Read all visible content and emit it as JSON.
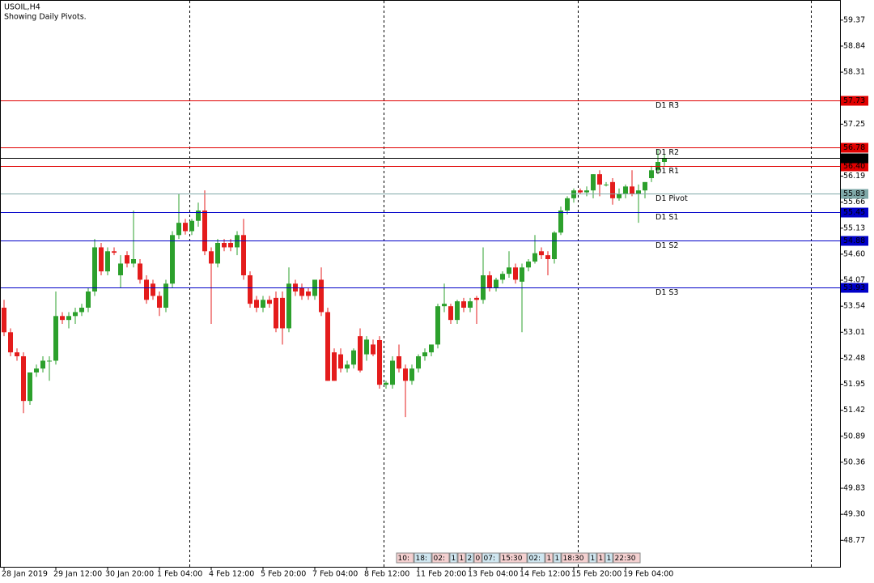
{
  "chart_data": {
    "type": "candlestick",
    "title": "USOIL,H4",
    "subtitle": "Showing Daily Pivots.",
    "categories": [
      "28 Jan 2019",
      null,
      null,
      null,
      null,
      null,
      null,
      null,
      "29 Jan 12:00",
      null,
      null,
      null,
      null,
      null,
      null,
      null,
      "30 Jan 20:00",
      null,
      null,
      null,
      null,
      null,
      null,
      null,
      "1 Feb 04:00",
      null,
      null,
      null,
      null,
      null,
      null,
      null,
      "4 Feb 12:00",
      null,
      null,
      null,
      null,
      null,
      null,
      null,
      "5 Feb 20:00",
      null,
      null,
      null,
      null,
      null,
      null,
      null,
      "7 Feb 04:00",
      null,
      null,
      null,
      null,
      null,
      null,
      null,
      "8 Feb 12:00",
      null,
      null,
      null,
      null,
      null,
      null,
      null,
      "11 Feb 20:00",
      null,
      null,
      null,
      null,
      null,
      null,
      null,
      "13 Feb 04:00",
      null,
      null,
      null,
      null,
      null,
      null,
      null,
      "14 Feb 12:00",
      null,
      null,
      null,
      null,
      null,
      null,
      null,
      "15 Feb 20:00",
      null,
      null,
      null,
      null,
      null,
      null,
      null,
      "19 Feb 04:00",
      null,
      null,
      null,
      null,
      null,
      null
    ],
    "open": [
      53.51,
      53.01,
      52.6,
      52.52,
      51.61,
      52.19,
      52.27,
      52.43,
      52.43,
      53.34,
      53.26,
      53.34,
      53.42,
      53.51,
      53.84,
      54.74,
      54.25,
      54.66,
      54.17,
      54.58,
      54.41,
      54.41,
      54.08,
      54.0,
      53.75,
      53.51,
      54.0,
      54.99,
      55.24,
      55.07,
      55.28,
      55.49,
      54.66,
      54.41,
      54.83,
      54.83,
      54.74,
      54.99,
      54.17,
      53.67,
      53.51,
      53.67,
      53.71,
      53.71,
      53.09,
      54.0,
      53.92,
      53.84,
      53.75,
      54.08,
      53.42,
      52.6,
      52.56,
      52.27,
      52.35,
      52.93,
      52.56,
      52.76,
      52.85,
      51.94,
      51.94,
      52.52,
      52.27,
      52.02,
      52.27,
      52.52,
      52.6,
      52.76,
      53.54,
      53.54,
      53.26,
      53.64,
      53.51,
      53.71,
      53.67,
      54.17,
      53.92,
      54.08,
      54.2,
      54.33,
      54.04,
      54.33,
      54.45,
      54.66,
      54.58,
      54.5,
      55.04,
      55.49,
      55.74,
      55.9,
      55.86,
      55.9,
      56.23,
      56.02,
      56.07,
      55.74,
      55.82,
      55.98,
      55.82,
      55.9,
      56.15,
      56.31,
      56.48
    ],
    "high": [
      53.67,
      53.09,
      52.68,
      52.6,
      52.19,
      52.35,
      52.52,
      52.52,
      53.84,
      53.42,
      53.42,
      53.51,
      53.59,
      53.92,
      54.91,
      54.83,
      54.74,
      54.74,
      54.58,
      54.66,
      55.49,
      54.5,
      54.17,
      54.08,
      53.84,
      54.08,
      55.07,
      55.82,
      55.32,
      55.32,
      55.65,
      55.9,
      54.74,
      54.91,
      54.91,
      54.91,
      55.07,
      55.32,
      54.25,
      53.75,
      53.75,
      53.75,
      53.84,
      53.84,
      54.33,
      54.08,
      54.0,
      53.92,
      54.08,
      54.33,
      53.51,
      52.68,
      52.68,
      52.43,
      52.68,
      53.09,
      52.93,
      52.86,
      52.93,
      52.02,
      52.52,
      52.76,
      52.35,
      52.35,
      52.56,
      52.68,
      52.76,
      53.59,
      54.0,
      53.59,
      53.67,
      53.71,
      53.71,
      53.75,
      54.74,
      54.25,
      54.12,
      54.25,
      54.66,
      54.41,
      54.41,
      54.5,
      54.99,
      54.74,
      54.66,
      55.07,
      55.57,
      55.78,
      55.94,
      55.94,
      55.98,
      56.23,
      56.31,
      56.07,
      56.15,
      55.94,
      56.02,
      56.31,
      56.02,
      56.07,
      56.4,
      56.73,
      56.64
    ],
    "low": [
      52.93,
      52.52,
      52.43,
      51.36,
      51.53,
      52.1,
      52.19,
      52.02,
      52.35,
      53.18,
      53.09,
      53.18,
      53.34,
      53.42,
      53.75,
      54.17,
      54.17,
      54.58,
      53.92,
      54.33,
      54.33,
      54.0,
      53.59,
      53.67,
      53.34,
      53.42,
      53.92,
      54.91,
      55.0,
      54.99,
      55.16,
      54.58,
      53.18,
      54.33,
      54.66,
      54.66,
      54.58,
      54.08,
      53.51,
      53.42,
      53.42,
      53.51,
      53.01,
      52.76,
      53.01,
      53.75,
      53.67,
      53.67,
      53.67,
      53.34,
      52.02,
      52.02,
      52.19,
      52.19,
      52.27,
      52.19,
      52.43,
      52.52,
      51.86,
      51.86,
      51.86,
      52.19,
      51.28,
      51.94,
      52.19,
      52.43,
      52.52,
      52.68,
      53.42,
      53.18,
      53.18,
      53.42,
      53.42,
      53.18,
      53.59,
      53.84,
      53.84,
      54.0,
      54.12,
      54.0,
      53.01,
      54.25,
      54.41,
      54.5,
      54.17,
      54.41,
      54.99,
      55.41,
      55.65,
      55.82,
      55.78,
      55.74,
      55.78,
      55.98,
      55.61,
      55.69,
      55.74,
      55.78,
      55.24,
      55.74,
      56.07,
      56.23,
      56.4
    ],
    "close": [
      53.01,
      52.6,
      52.52,
      51.61,
      52.19,
      52.27,
      52.43,
      52.43,
      53.34,
      53.26,
      53.34,
      53.42,
      53.51,
      53.84,
      54.74,
      54.25,
      54.66,
      54.63,
      54.41,
      54.41,
      54.5,
      54.08,
      53.67,
      53.75,
      53.51,
      54.0,
      54.99,
      55.24,
      55.07,
      55.28,
      55.49,
      54.66,
      54.41,
      54.83,
      54.74,
      54.74,
      54.99,
      54.17,
      53.59,
      53.51,
      53.67,
      53.59,
      53.09,
      53.09,
      54.0,
      53.84,
      53.75,
      53.75,
      54.08,
      53.42,
      52.02,
      52.02,
      52.27,
      52.35,
      52.64,
      52.23,
      52.86,
      52.56,
      51.94,
      51.98,
      52.43,
      52.27,
      52.02,
      52.27,
      52.52,
      52.6,
      52.76,
      53.54,
      53.59,
      53.26,
      53.64,
      53.51,
      53.64,
      53.67,
      54.17,
      53.92,
      54.08,
      54.2,
      54.33,
      54.08,
      54.33,
      54.45,
      54.62,
      54.58,
      54.5,
      55.04,
      55.49,
      55.74,
      55.9,
      55.86,
      55.9,
      56.23,
      56.02,
      56.02,
      55.74,
      55.82,
      55.98,
      55.82,
      55.9,
      56.07,
      56.31,
      56.48,
      56.56
    ],
    "up_color": "#2ca02c",
    "down_color": "#e41c1c",
    "ylim": [
      48.23,
      59.78
    ],
    "yticks": [
      59.37,
      58.84,
      58.31,
      57.25,
      56.19,
      55.66,
      55.13,
      {
        "value": 54.6,
        "label": "54.60"
      },
      54.07,
      53.54,
      53.01,
      52.48,
      51.95,
      51.42,
      50.89,
      50.36,
      49.83,
      {
        "value": 49.3,
        "label": "49.30"
      },
      48.77
    ],
    "lines": [
      {
        "name": "D1 R3",
        "value": 57.73,
        "label": "57.73",
        "color": "#e00000"
      },
      {
        "name": "D1 R2",
        "value": 56.78,
        "label": "56.78",
        "color": "#e00000"
      },
      {
        "name": "D1 R1",
        "value": 56.4,
        "label": "56.40",
        "color": "#e00000"
      },
      {
        "name": "D1 Pivot",
        "value": 55.83,
        "label": "55.83",
        "color": "#7fa8a8"
      },
      {
        "name": "D1 S1",
        "value": 55.45,
        "label": "55.45",
        "color": "#0000c8"
      },
      {
        "name": "D1 S2",
        "value": 54.88,
        "label": "54.88",
        "color": "#0000c8"
      },
      {
        "name": "D1 S3",
        "value": 53.93,
        "label": "53.93",
        "color": "#0000c8"
      },
      {
        "value": 56.56,
        "label": "56.56",
        "color": "#000000"
      }
    ],
    "footer_boxes": [
      "10:",
      "18:",
      "02:",
      "1",
      "1",
      "2",
      "0",
      "07:",
      "15:30",
      "02:",
      "1",
      "1",
      "18:30",
      "1",
      "1",
      "1",
      "22:30"
    ]
  }
}
